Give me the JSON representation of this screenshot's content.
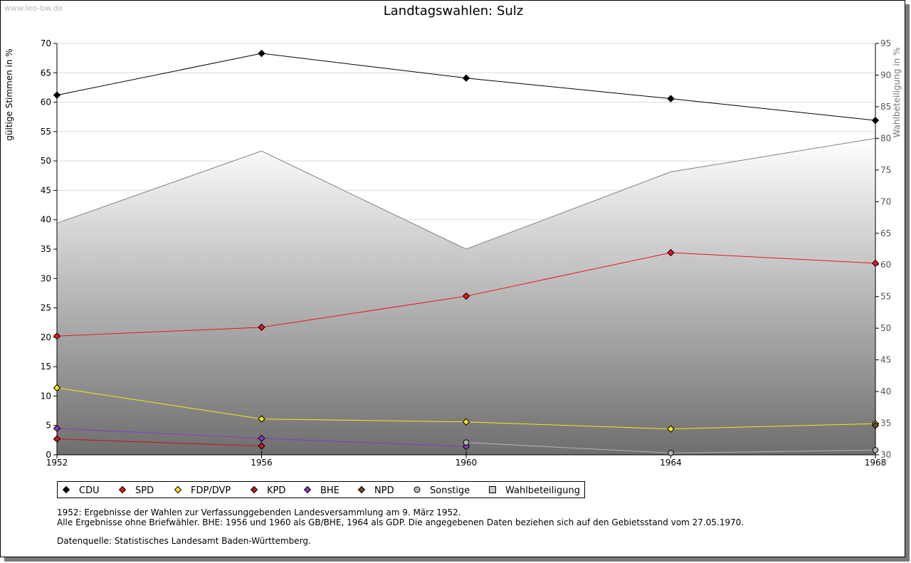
{
  "watermark": "www.leo-bw.de",
  "chart_data": {
    "type": "line",
    "title": "Landtagswahlen: Sulz",
    "ylabel": "gültige Stimmen in %",
    "y2label": "Wahlbeteiligung in %",
    "x": [
      1952,
      1956,
      1960,
      1964,
      1968
    ],
    "ylim": [
      0,
      70
    ],
    "y2lim": [
      30,
      95
    ],
    "yticks": [
      0,
      5,
      10,
      15,
      20,
      25,
      30,
      35,
      40,
      45,
      50,
      55,
      60,
      65,
      70
    ],
    "y2ticks": [
      30,
      35,
      40,
      45,
      50,
      55,
      60,
      65,
      70,
      75,
      80,
      85,
      90,
      95
    ],
    "grid": true,
    "legend_position": "bottom",
    "series": [
      {
        "name": "CDU",
        "color": "#000000",
        "values": [
          61.2,
          68.3,
          64.1,
          60.6,
          56.9
        ]
      },
      {
        "name": "SPD",
        "color": "#e8141a",
        "values": [
          20.2,
          21.7,
          27.0,
          34.4,
          32.6
        ]
      },
      {
        "name": "FDP/DVP",
        "color": "#f2ea14",
        "values": [
          11.4,
          6.1,
          5.6,
          4.4,
          5.3
        ]
      },
      {
        "name": "KPD",
        "color": "#c8141a",
        "values": [
          2.7,
          1.5,
          null,
          null,
          null
        ]
      },
      {
        "name": "BHE",
        "color": "#8a38c8",
        "values": [
          4.5,
          2.8,
          1.4,
          null,
          null
        ]
      },
      {
        "name": "NPD",
        "color": "#6b4a2a",
        "values": [
          null,
          null,
          null,
          null,
          5.0
        ]
      },
      {
        "name": "Sonstige",
        "color": "#b4b4b4",
        "values": [
          null,
          null,
          2.1,
          0.3,
          0.8
        ]
      },
      {
        "name": "Wahlbeteiligung",
        "color": "#c8c8c8",
        "axis": "right",
        "values": [
          66.6,
          78.0,
          62.5,
          74.7,
          80.0
        ]
      }
    ]
  },
  "notes": [
    "1952: Ergebnisse der Wahlen zur Verfassunggebenden Landesversammlung am 9. März 1952.",
    "Alle Ergebnisse ohne Briefwähler. BHE: 1956 und 1960 als GB/BHE, 1964 als GDP. Die angegebenen Daten beziehen sich auf den Gebietsstand vom 27.05.1970.",
    "Datenquelle: Statistisches Landesamt Baden-Württemberg."
  ]
}
